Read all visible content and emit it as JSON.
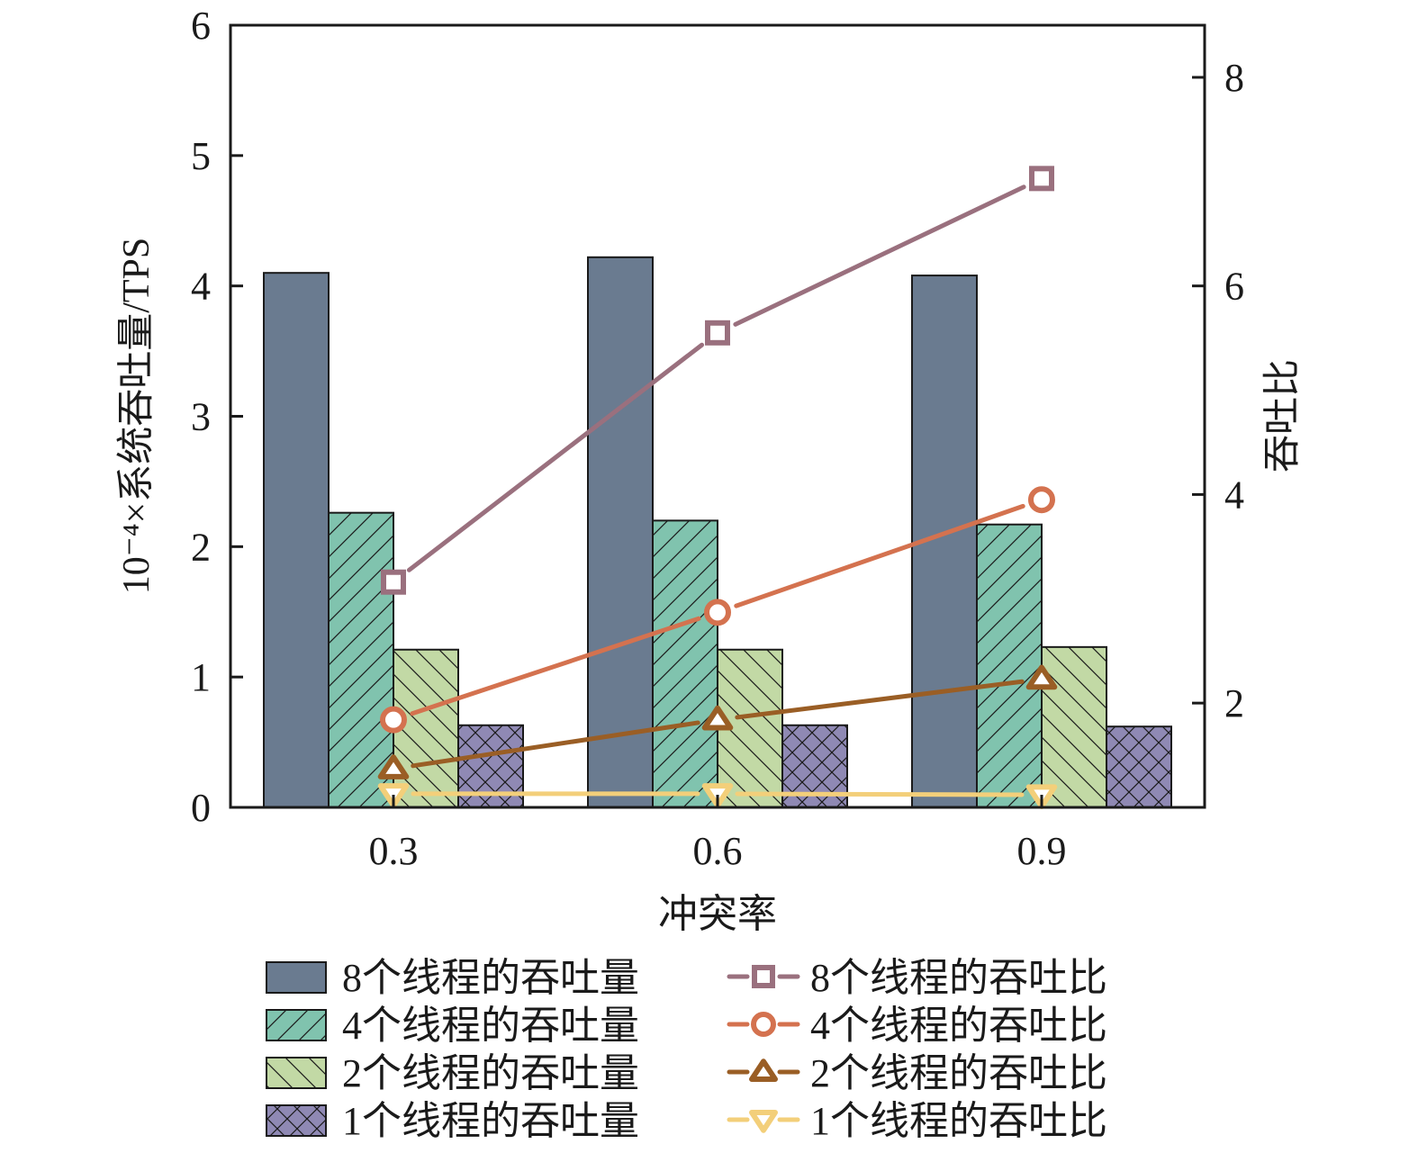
{
  "chart_data": {
    "type": "bar",
    "title": "",
    "xlabel": "冲突率",
    "ylabel": "10⁻⁴×系统吞吐量/TPS",
    "y2label": "吞吐比",
    "categories": [
      "0.3",
      "0.6",
      "0.9"
    ],
    "ylim": [
      0,
      6
    ],
    "yticks": [
      "0",
      "1",
      "2",
      "3",
      "4",
      "5",
      "6"
    ],
    "y2lim": [
      1,
      8.5
    ],
    "y2ticks": [
      "2",
      "4",
      "6",
      "8"
    ],
    "grid": false,
    "legend_position": "bottom",
    "bar_series": [
      {
        "name": "8个线程的吞吐量",
        "values": [
          4.1,
          4.22,
          4.08
        ],
        "color": "#6a7b90",
        "pattern": "solid"
      },
      {
        "name": "4个线程的吞吐量",
        "values": [
          2.26,
          2.2,
          2.17
        ],
        "color": "#80c3ae",
        "pattern": "forward-hatch"
      },
      {
        "name": "2个线程的吞吐量",
        "values": [
          1.21,
          1.21,
          1.23
        ],
        "color": "#c2d9a5",
        "pattern": "back-hatch"
      },
      {
        "name": "1个线程的吞吐量",
        "values": [
          0.63,
          0.63,
          0.62
        ],
        "color": "#8f89b4",
        "pattern": "cross-hatch"
      }
    ],
    "line_series": [
      {
        "name": "8个线程的吞吐比",
        "values": [
          3.16,
          5.55,
          7.03
        ],
        "color": "#9a707e",
        "marker": "square",
        "axis": "right"
      },
      {
        "name": "4个线程的吞吐比",
        "values": [
          1.84,
          2.87,
          3.95
        ],
        "color": "#d4724f",
        "marker": "circle",
        "axis": "right"
      },
      {
        "name": "2个线程的吞吐比",
        "values": [
          1.37,
          1.84,
          2.23
        ],
        "color": "#9a5e25",
        "marker": "triangle-up",
        "axis": "right"
      },
      {
        "name": "1个线程的吞吐比",
        "values": [
          1.13,
          1.13,
          1.12
        ],
        "color": "#f3cf7a",
        "marker": "triangle-down",
        "axis": "right"
      }
    ]
  }
}
